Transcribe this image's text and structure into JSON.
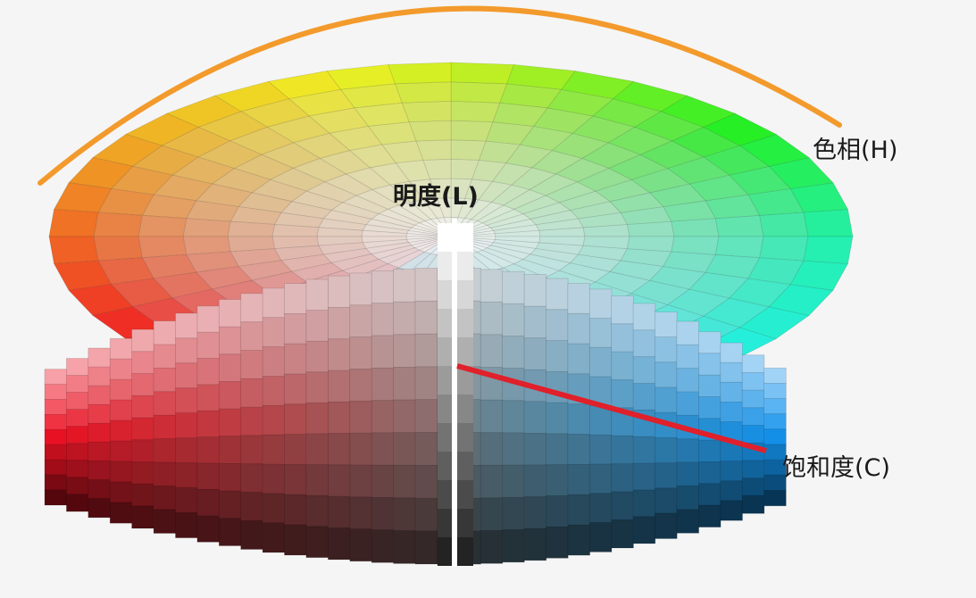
{
  "labels": {
    "hue": "色相(H)",
    "lightness": "明度(L)",
    "chroma": "饱和度(C)"
  },
  "colors": {
    "background": "#f5f5f5",
    "hue_arc": "#f39a2c",
    "chroma_line": "#e0202a",
    "lightness_axis": "#ffffff"
  }
}
